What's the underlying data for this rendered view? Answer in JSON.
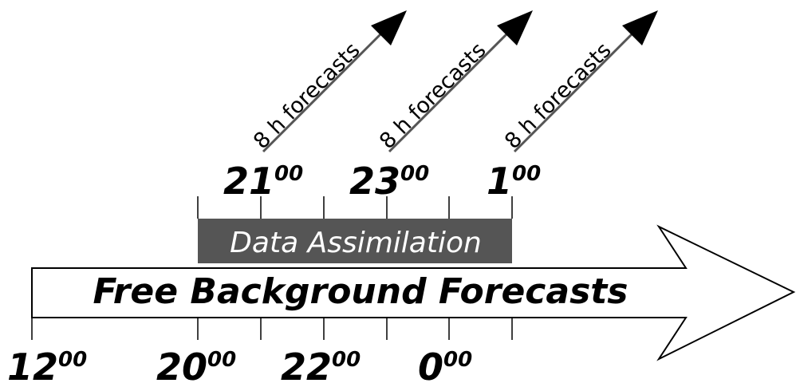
{
  "main_bar": {
    "label": "Free Background Forecasts",
    "fill_color": "#ffffff",
    "stroke_color": "#000000"
  },
  "assimilation_window": {
    "label": "Data Assimilation",
    "fill_color": "#555555",
    "text_color": "#ffffff"
  },
  "bottom_times": [
    {
      "main": "12",
      "sup": "00"
    },
    {
      "main": "20",
      "sup": "00"
    },
    {
      "main": "22",
      "sup": "00"
    },
    {
      "main": "0",
      "sup": "00"
    }
  ],
  "top_times": [
    {
      "main": "21",
      "sup": "00"
    },
    {
      "main": "23",
      "sup": "00"
    },
    {
      "main": "1",
      "sup": "00"
    }
  ],
  "forecasts": [
    {
      "label": "8 h forecasts"
    },
    {
      "label": "8 h forecasts"
    },
    {
      "label": "8 h forecasts"
    }
  ]
}
